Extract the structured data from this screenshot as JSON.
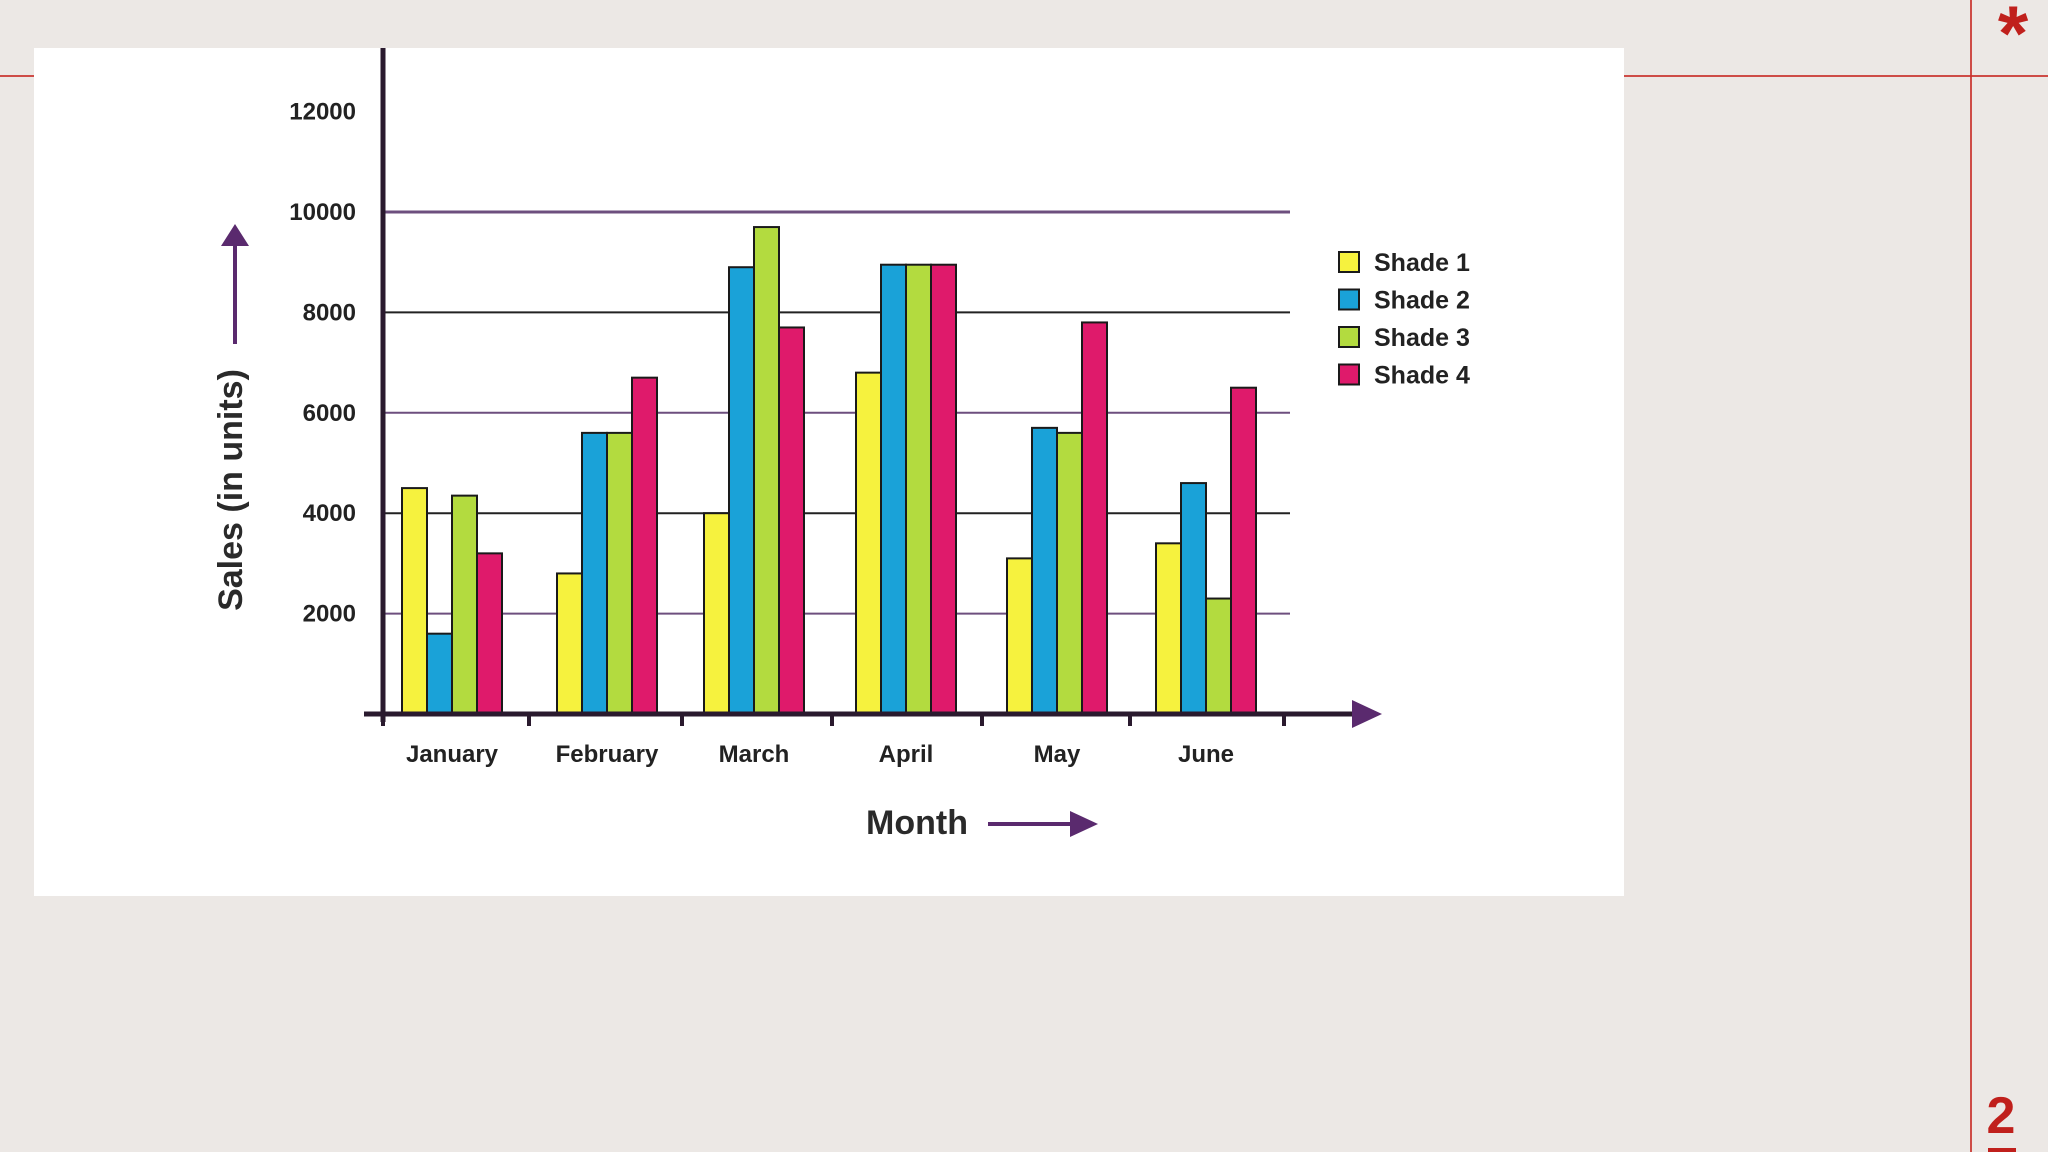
{
  "slide": {
    "mark": "*",
    "number": "2"
  },
  "chart_data": {
    "type": "bar",
    "xlabel": "Month",
    "ylabel": "Sales (in units)",
    "categories": [
      "January",
      "February",
      "March",
      "April",
      "May",
      "June"
    ],
    "yticks": [
      2000,
      4000,
      6000,
      8000,
      10000,
      12000
    ],
    "ylim": [
      0,
      13000
    ],
    "grid": "horizontal",
    "legend_position": "right",
    "series": [
      {
        "name": "Shade 1",
        "color": "#f6f23e",
        "values": [
          4500,
          2800,
          4000,
          6800,
          3100,
          3400
        ]
      },
      {
        "name": "Shade 2",
        "color": "#1aa2d8",
        "values": [
          1600,
          5600,
          8900,
          8950,
          5700,
          4600
        ]
      },
      {
        "name": "Shade 3",
        "color": "#b3db3f",
        "values": [
          4350,
          5600,
          9700,
          8950,
          5600,
          2300
        ]
      },
      {
        "name": "Shade 4",
        "color": "#df1a6b",
        "values": [
          3200,
          6700,
          7700,
          8950,
          7800,
          6500
        ]
      }
    ],
    "grid_colors": {
      "purple": "#6d4f7e",
      "black": "#222222"
    },
    "axis_color": "#2a1a2e",
    "arrow_color": "#5a2a6e"
  }
}
